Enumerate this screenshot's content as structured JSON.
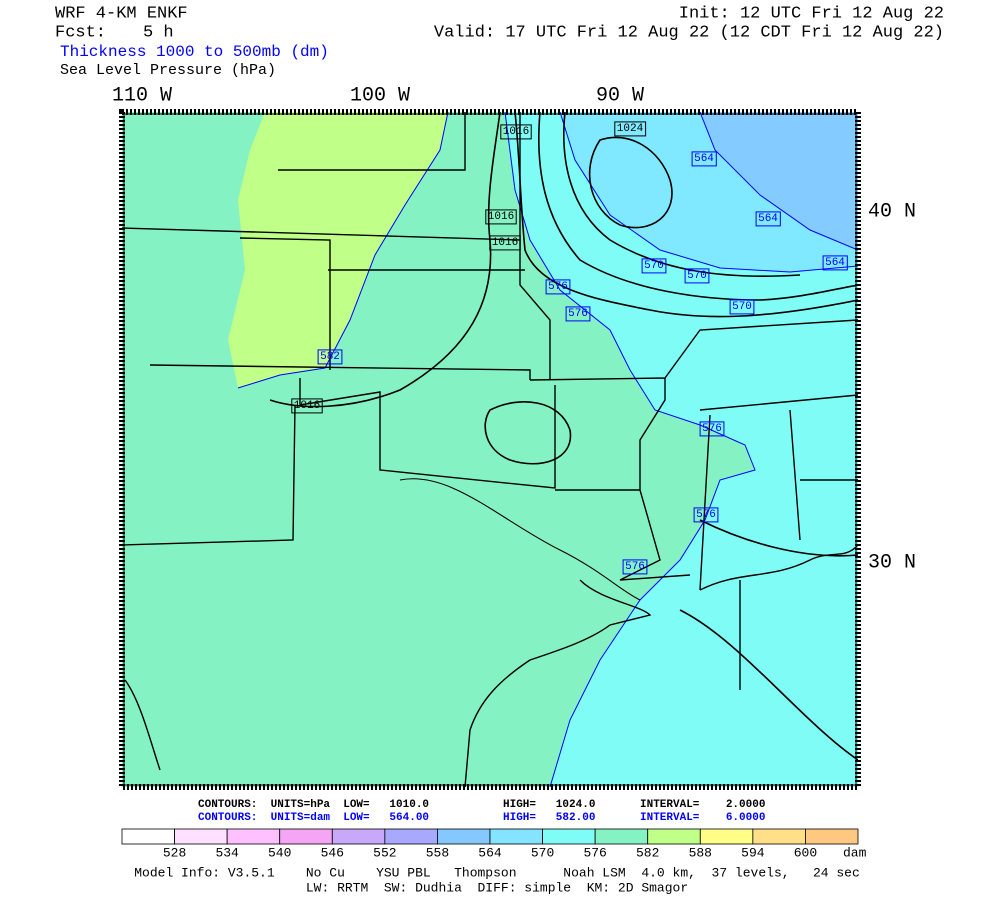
{
  "header": {
    "model": "WRF 4-KM ENKF",
    "forecast_label": "Fcst:",
    "forecast_value": "5 h",
    "init": "Init: 12 UTC Fri 12 Aug 22",
    "valid": "Valid: 17 UTC Fri 12 Aug 22 (12 CDT Fri 12 Aug 22)",
    "field_1": "Thickness 1000 to 500mb (dm)",
    "field_2": "Sea Level Pressure (hPa)"
  },
  "map": {
    "longitude_labels": [
      "110 W",
      "100 W",
      "90 W"
    ],
    "latitude_labels": [
      "40 N",
      "30 N"
    ],
    "pressure_labels": [
      "1016",
      "1024",
      "1016",
      "1016",
      "1016"
    ],
    "thickness_labels": [
      "564",
      "564",
      "564",
      "570",
      "570",
      "570",
      "576",
      "576",
      "582",
      "576",
      "576",
      "576"
    ]
  },
  "footer": {
    "pressure_contours": [
      "CONTOURS:  UNITS=hPa  LOW=   1010.0",
      "HIGH=   1024.0",
      "INTERVAL=    2.0000"
    ],
    "thickness_contours": [
      "CONTOURS:  UNITS=dam  LOW=   564.00",
      "HIGH=   582.00",
      "INTERVAL=    6.0000"
    ],
    "colorbar_labels": [
      "528",
      "534",
      "540",
      "546",
      "552",
      "558",
      "564",
      "570",
      "576",
      "582",
      "588",
      "594",
      "600"
    ],
    "colorbar_unit": "dam",
    "model_info": "Model Info: V3.5.1    No Cu    YSU PBL   Thompson      Noah LSM  4.0 km,  37 levels,   24 sec",
    "physics_info": "LW: RRTM  SW: Dudhia  DIFF: simple  KM: 2D Smagor"
  }
}
